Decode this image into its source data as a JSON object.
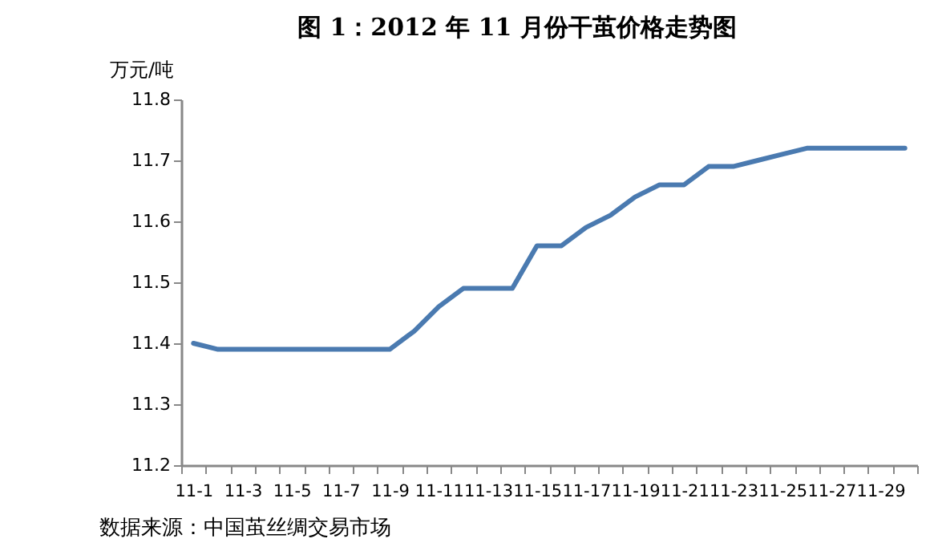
{
  "chart_data": {
    "type": "line",
    "title": "图 1：2012 年 11 月份干茧价格走势图",
    "ylabel": "万元/吨",
    "categories": [
      "11-1",
      null,
      "11-3",
      null,
      "11-5",
      null,
      "11-7",
      null,
      "11-9",
      null,
      "11-11",
      null,
      "11-13",
      null,
      "11-15",
      null,
      "11-17",
      null,
      "11-19",
      null,
      "11-21",
      null,
      "11-23",
      null,
      "11-25",
      null,
      "11-27",
      null,
      "11-29",
      null
    ],
    "series": [
      {
        "color": "#4a7ab0",
        "values": [
          11.4,
          11.39,
          11.39,
          11.39,
          11.39,
          11.39,
          11.39,
          11.39,
          11.39,
          11.42,
          11.46,
          11.49,
          11.49,
          11.49,
          11.56,
          11.56,
          11.59,
          11.61,
          11.64,
          11.66,
          11.66,
          11.69,
          11.69,
          11.7,
          11.71,
          11.72,
          11.72,
          11.72,
          11.72,
          11.72
        ]
      }
    ],
    "ylim": [
      11.2,
      11.8
    ],
    "yticks": [
      11.2,
      11.3,
      11.4,
      11.5,
      11.6,
      11.7,
      11.8
    ],
    "grid": false,
    "legend": false,
    "marker": "none",
    "line_style": "solid",
    "annotations": [
      "数据来源：中国茧丝绸交易市场"
    ]
  }
}
